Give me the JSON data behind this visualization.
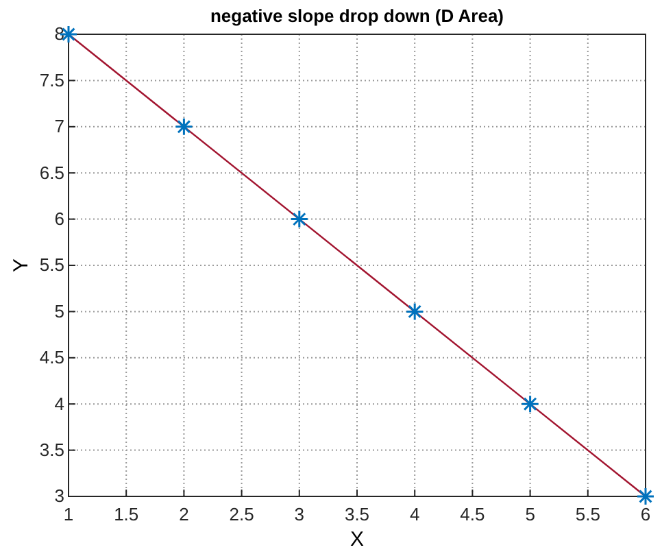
{
  "chart_data": {
    "type": "scatter",
    "title": "negative slope drop down (D Area)",
    "xlabel": "X",
    "ylabel": "Y",
    "x": [
      1,
      2,
      3,
      4,
      5,
      6
    ],
    "series": [
      {
        "type": "line",
        "color": "#a2142f",
        "x": [
          1,
          6
        ],
        "values": [
          8,
          3
        ],
        "marker": "none",
        "line_style": "solid"
      },
      {
        "color": "#0072bd",
        "values": [
          8,
          7,
          6,
          5,
          4,
          3
        ],
        "marker": "cross"
      }
    ],
    "xlim": [
      1,
      6
    ],
    "ylim": [
      3,
      8
    ],
    "xticks": [
      1,
      1.5,
      2,
      2.5,
      3,
      3.5,
      4,
      4.5,
      5,
      5.5,
      6
    ],
    "yticks": [
      3,
      3.5,
      4,
      4.5,
      5,
      5.5,
      6,
      6.5,
      7,
      7.5,
      8
    ],
    "grid": true
  }
}
